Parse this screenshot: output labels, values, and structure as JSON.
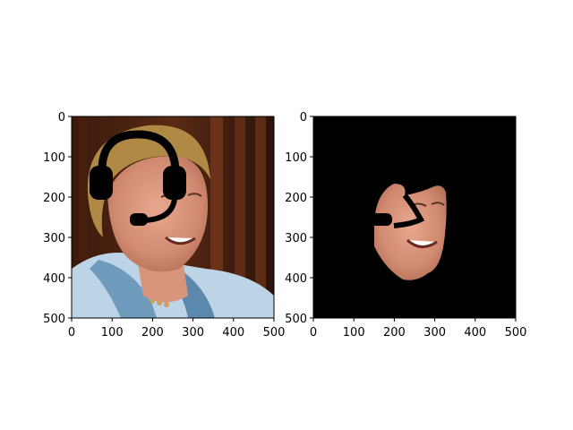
{
  "figure": {
    "panels": [
      {
        "name": "original-with-headset",
        "xticks": [
          "0",
          "100",
          "200",
          "300",
          "400",
          "500"
        ],
        "yticks": [
          "0",
          "100",
          "200",
          "300",
          "400",
          "500"
        ],
        "overlay": "headset-icon"
      },
      {
        "name": "segmented-face",
        "xticks": [
          "0",
          "100",
          "200",
          "300",
          "400",
          "500"
        ],
        "yticks": [
          "0",
          "100",
          "200",
          "300",
          "400",
          "500"
        ],
        "overlay": "headset-icon"
      }
    ]
  }
}
